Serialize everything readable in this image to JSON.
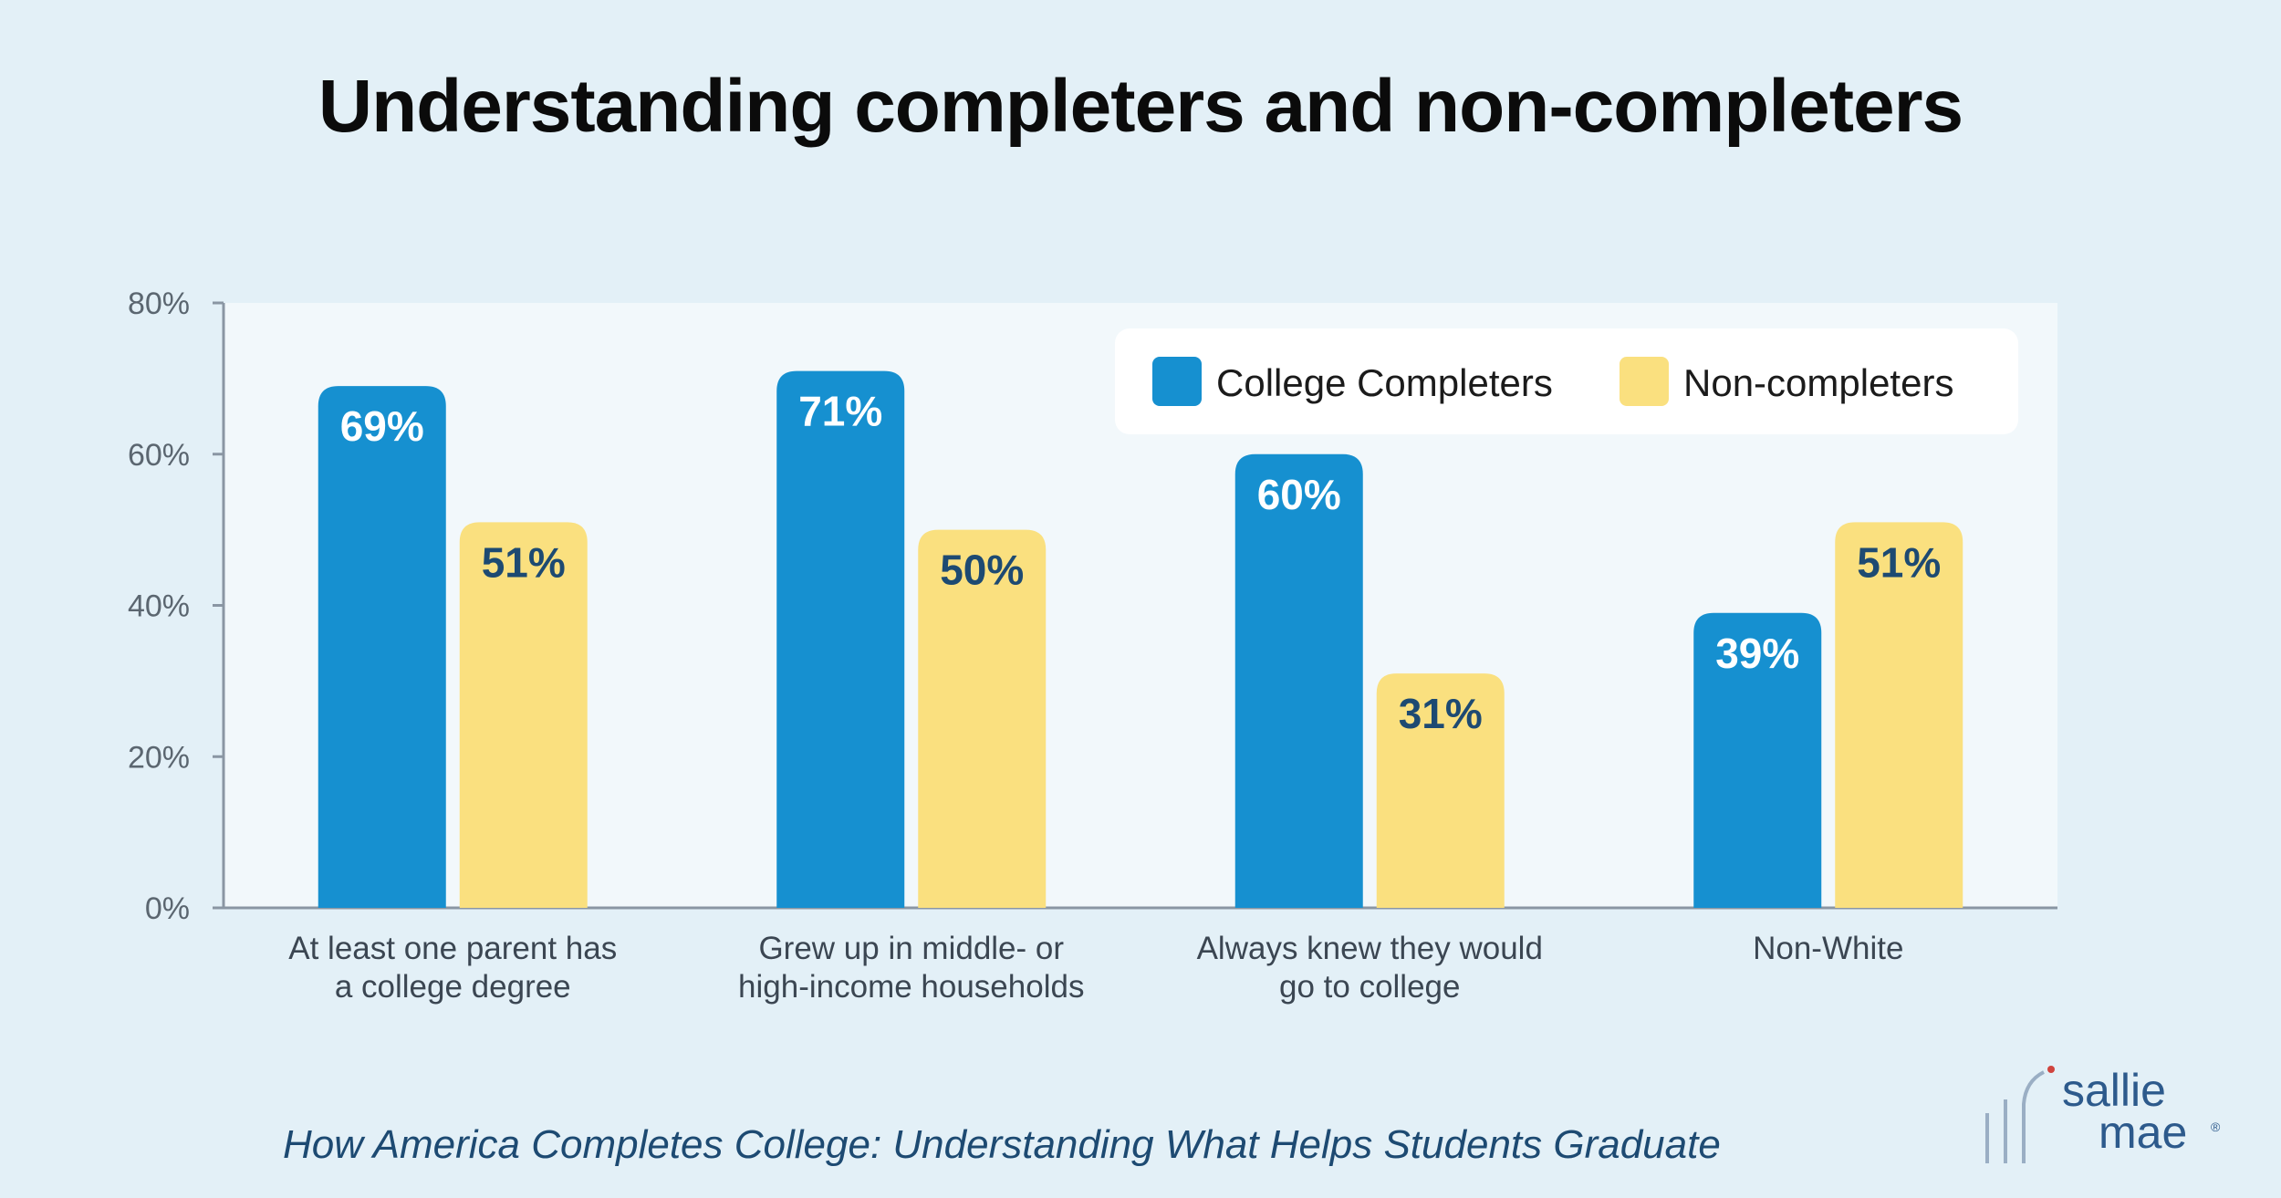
{
  "title": "Understanding completers and non-completers",
  "source": "How America Completes College: Understanding What Helps Students Graduate",
  "logo": {
    "line1": "sallie",
    "line2": "mae",
    "mark": "®"
  },
  "colors": {
    "background": "#e3f0f7",
    "plot_background": "#f2f8fb",
    "completers": "#1690d0",
    "non_completers": "#fae07f",
    "label_on_blue": "#ffffff",
    "label_on_yellow": "#1d4a72"
  },
  "chart_data": {
    "type": "bar",
    "categories": [
      [
        "At least one parent has",
        "a college degree"
      ],
      [
        "Grew up in middle- or",
        "high-income households"
      ],
      [
        "Always knew they would",
        "go to college"
      ],
      [
        "Non-White"
      ]
    ],
    "series": [
      {
        "name": "College Completers",
        "values": [
          69,
          71,
          60,
          39
        ],
        "labels": [
          "69%",
          "71%",
          "60%",
          "39%"
        ]
      },
      {
        "name": "Non-completers",
        "values": [
          51,
          50,
          31,
          51
        ],
        "labels": [
          "51%",
          "50%",
          "31%",
          "51%"
        ]
      }
    ],
    "ylim": [
      0,
      80
    ],
    "yticks": [
      0,
      20,
      40,
      60,
      80
    ],
    "ytick_labels": [
      "0%",
      "20%",
      "40%",
      "60%",
      "80%"
    ],
    "xlabel": "",
    "ylabel": "",
    "legend_position": "top-right",
    "grid": false
  }
}
